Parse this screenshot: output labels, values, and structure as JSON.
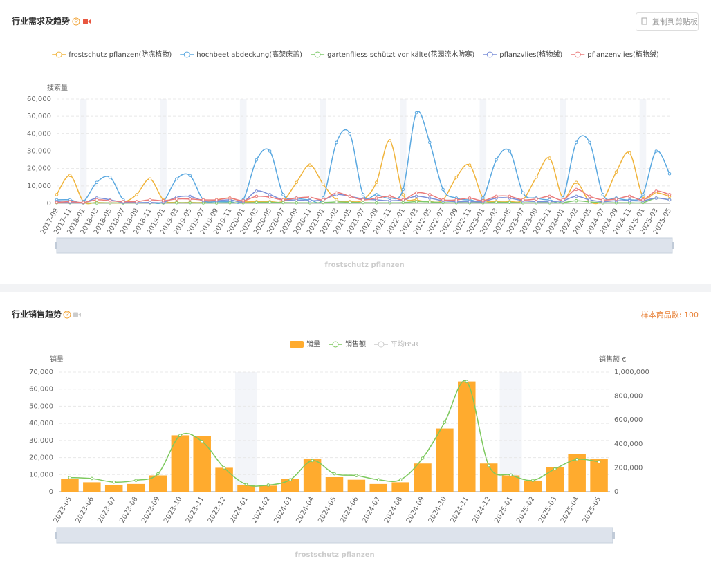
{
  "toolbar": {
    "copy_button": "复制到剪贴板"
  },
  "chart_data": [
    {
      "type": "line",
      "title": "行业需求及趋势",
      "y_axis_label": "搜索量",
      "zoom_label": "frostschutz pflanzen",
      "categories": [
        "2017-09",
        "2017-11",
        "2018-01",
        "2018-03",
        "2018-05",
        "2018-07",
        "2018-09",
        "2018-11",
        "2019-01",
        "2019-03",
        "2019-05",
        "2019-07",
        "2019-09",
        "2019-11",
        "2020-01",
        "2020-03",
        "2020-05",
        "2020-07",
        "2020-09",
        "2020-11",
        "2021-01",
        "2021-03",
        "2021-05",
        "2021-07",
        "2021-09",
        "2021-11",
        "2022-01",
        "2022-03",
        "2022-05",
        "2022-07",
        "2022-09",
        "2022-11",
        "2023-01",
        "2023-03",
        "2023-05",
        "2023-07",
        "2023-09",
        "2023-11",
        "2024-01",
        "2024-03",
        "2024-05",
        "2024-07",
        "2024-09",
        "2024-11",
        "2025-01",
        "2025-03",
        "2025-05"
      ],
      "ylim": [
        0,
        60000
      ],
      "yticks": [
        0,
        {
          "value": 10000,
          "label": "10,000"
        },
        {
          "value": 20000,
          "label": "20,000"
        },
        {
          "value": 30000,
          "label": "30,000"
        },
        {
          "value": 40000,
          "label": "40,000"
        },
        {
          "value": 50000,
          "label": "50,000"
        },
        {
          "value": 60000,
          "label": "60,000"
        }
      ],
      "grid": true,
      "series": [
        {
          "name": "frostschutz pflanzen(防冻植物)",
          "color": "#f0b43c",
          "values": [
            5000,
            16000,
            1000,
            500,
            300,
            500,
            5000,
            14000,
            2000,
            500,
            500,
            500,
            2000,
            3000,
            1000,
            1000,
            1000,
            1500,
            12000,
            22000,
            11000,
            2000,
            1000,
            2000,
            12000,
            36000,
            5000,
            2000,
            1000,
            2000,
            15000,
            22000,
            3000,
            1000,
            1000,
            2000,
            15000,
            26000,
            3000,
            12000,
            1000,
            2000,
            18000,
            29000,
            4000,
            6000,
            4000
          ]
        },
        {
          "name": "hochbeet abdeckung(高架床盖)",
          "color": "#5aa8e0",
          "values": [
            2000,
            2000,
            1000,
            12000,
            15000,
            2000,
            500,
            500,
            1000,
            14000,
            16000,
            2000,
            1000,
            1000,
            2000,
            25000,
            30000,
            5000,
            3000,
            2000,
            3000,
            35000,
            40000,
            5000,
            5000,
            3000,
            8000,
            52000,
            35000,
            8000,
            3000,
            2000,
            3000,
            25000,
            30000,
            6000,
            3000,
            2000,
            3000,
            35000,
            35000,
            5000,
            3000,
            2000,
            5000,
            30000,
            17000
          ]
        },
        {
          "name": "gartenfliess schützt vor kälte(花园流水防寒)",
          "color": "#7ec96b",
          "values": [
            300,
            300,
            200,
            200,
            300,
            200,
            200,
            300,
            200,
            300,
            300,
            200,
            200,
            300,
            300,
            500,
            600,
            400,
            300,
            300,
            400,
            800,
            600,
            400,
            300,
            300,
            400,
            1000,
            800,
            400,
            300,
            300,
            300,
            600,
            500,
            300,
            300,
            300,
            400,
            1500,
            800,
            300,
            300,
            300,
            400,
            3000,
            2000
          ]
        },
        {
          "name": "pflanzvlies(植物绒)",
          "color": "#7b8fd8",
          "values": [
            1000,
            500,
            300,
            3000,
            2000,
            500,
            300,
            500,
            500,
            3500,
            4000,
            1500,
            1500,
            2000,
            1000,
            7000,
            5000,
            2000,
            2000,
            1500,
            2000,
            5000,
            4000,
            2500,
            2000,
            1500,
            2000,
            4000,
            3000,
            1500,
            1000,
            1000,
            1000,
            3000,
            3000,
            1500,
            1000,
            1000,
            1500,
            4000,
            2000,
            1000,
            1500,
            1500,
            1500,
            3000,
            2000
          ]
        },
        {
          "name": "pflanzenvlies(植物绒)",
          "color": "#ea7a7a",
          "values": [
            500,
            1000,
            500,
            2000,
            1500,
            1000,
            1000,
            2000,
            1500,
            2500,
            2500,
            2000,
            2000,
            3000,
            1500,
            4000,
            3500,
            2000,
            3000,
            3500,
            2000,
            6000,
            4000,
            2000,
            3000,
            4000,
            2000,
            6000,
            5000,
            2000,
            2000,
            3000,
            1500,
            4000,
            4000,
            2000,
            2500,
            4000,
            2000,
            8000,
            4000,
            2000,
            2500,
            4000,
            2000,
            7000,
            5000
          ]
        }
      ]
    },
    {
      "type": "bar",
      "title": "行业销售趋势",
      "sample_count": "样本商品数: 100",
      "y_axis_label": "销量",
      "y2_axis_label": "销售额 €",
      "zoom_label": "frostschutz pflanzen",
      "categories": [
        "2023-05",
        "2023-06",
        "2023-07",
        "2023-08",
        "2023-09",
        "2023-10",
        "2023-11",
        "2023-12",
        "2024-01",
        "2024-02",
        "2024-03",
        "2024-04",
        "2024-05",
        "2024-06",
        "2024-07",
        "2024-08",
        "2024-09",
        "2024-10",
        "2024-11",
        "2024-12",
        "2025-01",
        "2025-02",
        "2025-03",
        "2025-04",
        "2025-05"
      ],
      "ylim": [
        0,
        70000
      ],
      "yticks": [
        0,
        {
          "value": 10000,
          "label": "10,000"
        },
        {
          "value": 20000,
          "label": "20,000"
        },
        {
          "value": 30000,
          "label": "30,000"
        },
        {
          "value": 40000,
          "label": "40,000"
        },
        {
          "value": 50000,
          "label": "50,000"
        },
        {
          "value": 60000,
          "label": "60,000"
        },
        {
          "value": 70000,
          "label": "70,000"
        }
      ],
      "y2lim": [
        0,
        1000000
      ],
      "y2ticks": [
        0,
        {
          "value": 200000,
          "label": "200,000"
        },
        {
          "value": 400000,
          "label": "400,000"
        },
        {
          "value": 600000,
          "label": "600,000"
        },
        {
          "value": 800000,
          "label": "800,000"
        },
        {
          "value": 1000000,
          "label": "1,000,000"
        }
      ],
      "grid": true,
      "series": [
        {
          "name": "销量",
          "type": "bar",
          "color": "#ffab2e",
          "values": [
            7500,
            5500,
            4000,
            4500,
            9500,
            33000,
            32500,
            14000,
            4000,
            3500,
            7500,
            19000,
            8500,
            7000,
            4500,
            5500,
            16500,
            37000,
            64500,
            16500,
            9500,
            6500,
            14500,
            22000,
            19000
          ]
        },
        {
          "name": "销售额",
          "type": "line",
          "axis": "y2",
          "color": "#7dc95e",
          "values": [
            118000,
            110000,
            80000,
            95000,
            150000,
            470000,
            420000,
            200000,
            60000,
            55000,
            100000,
            260000,
            150000,
            135000,
            100000,
            100000,
            280000,
            580000,
            920000,
            220000,
            140000,
            95000,
            190000,
            270000,
            250000
          ]
        },
        {
          "name": "平均BSR",
          "type": "line",
          "color": "#cccccc",
          "visible": false
        }
      ]
    }
  ]
}
